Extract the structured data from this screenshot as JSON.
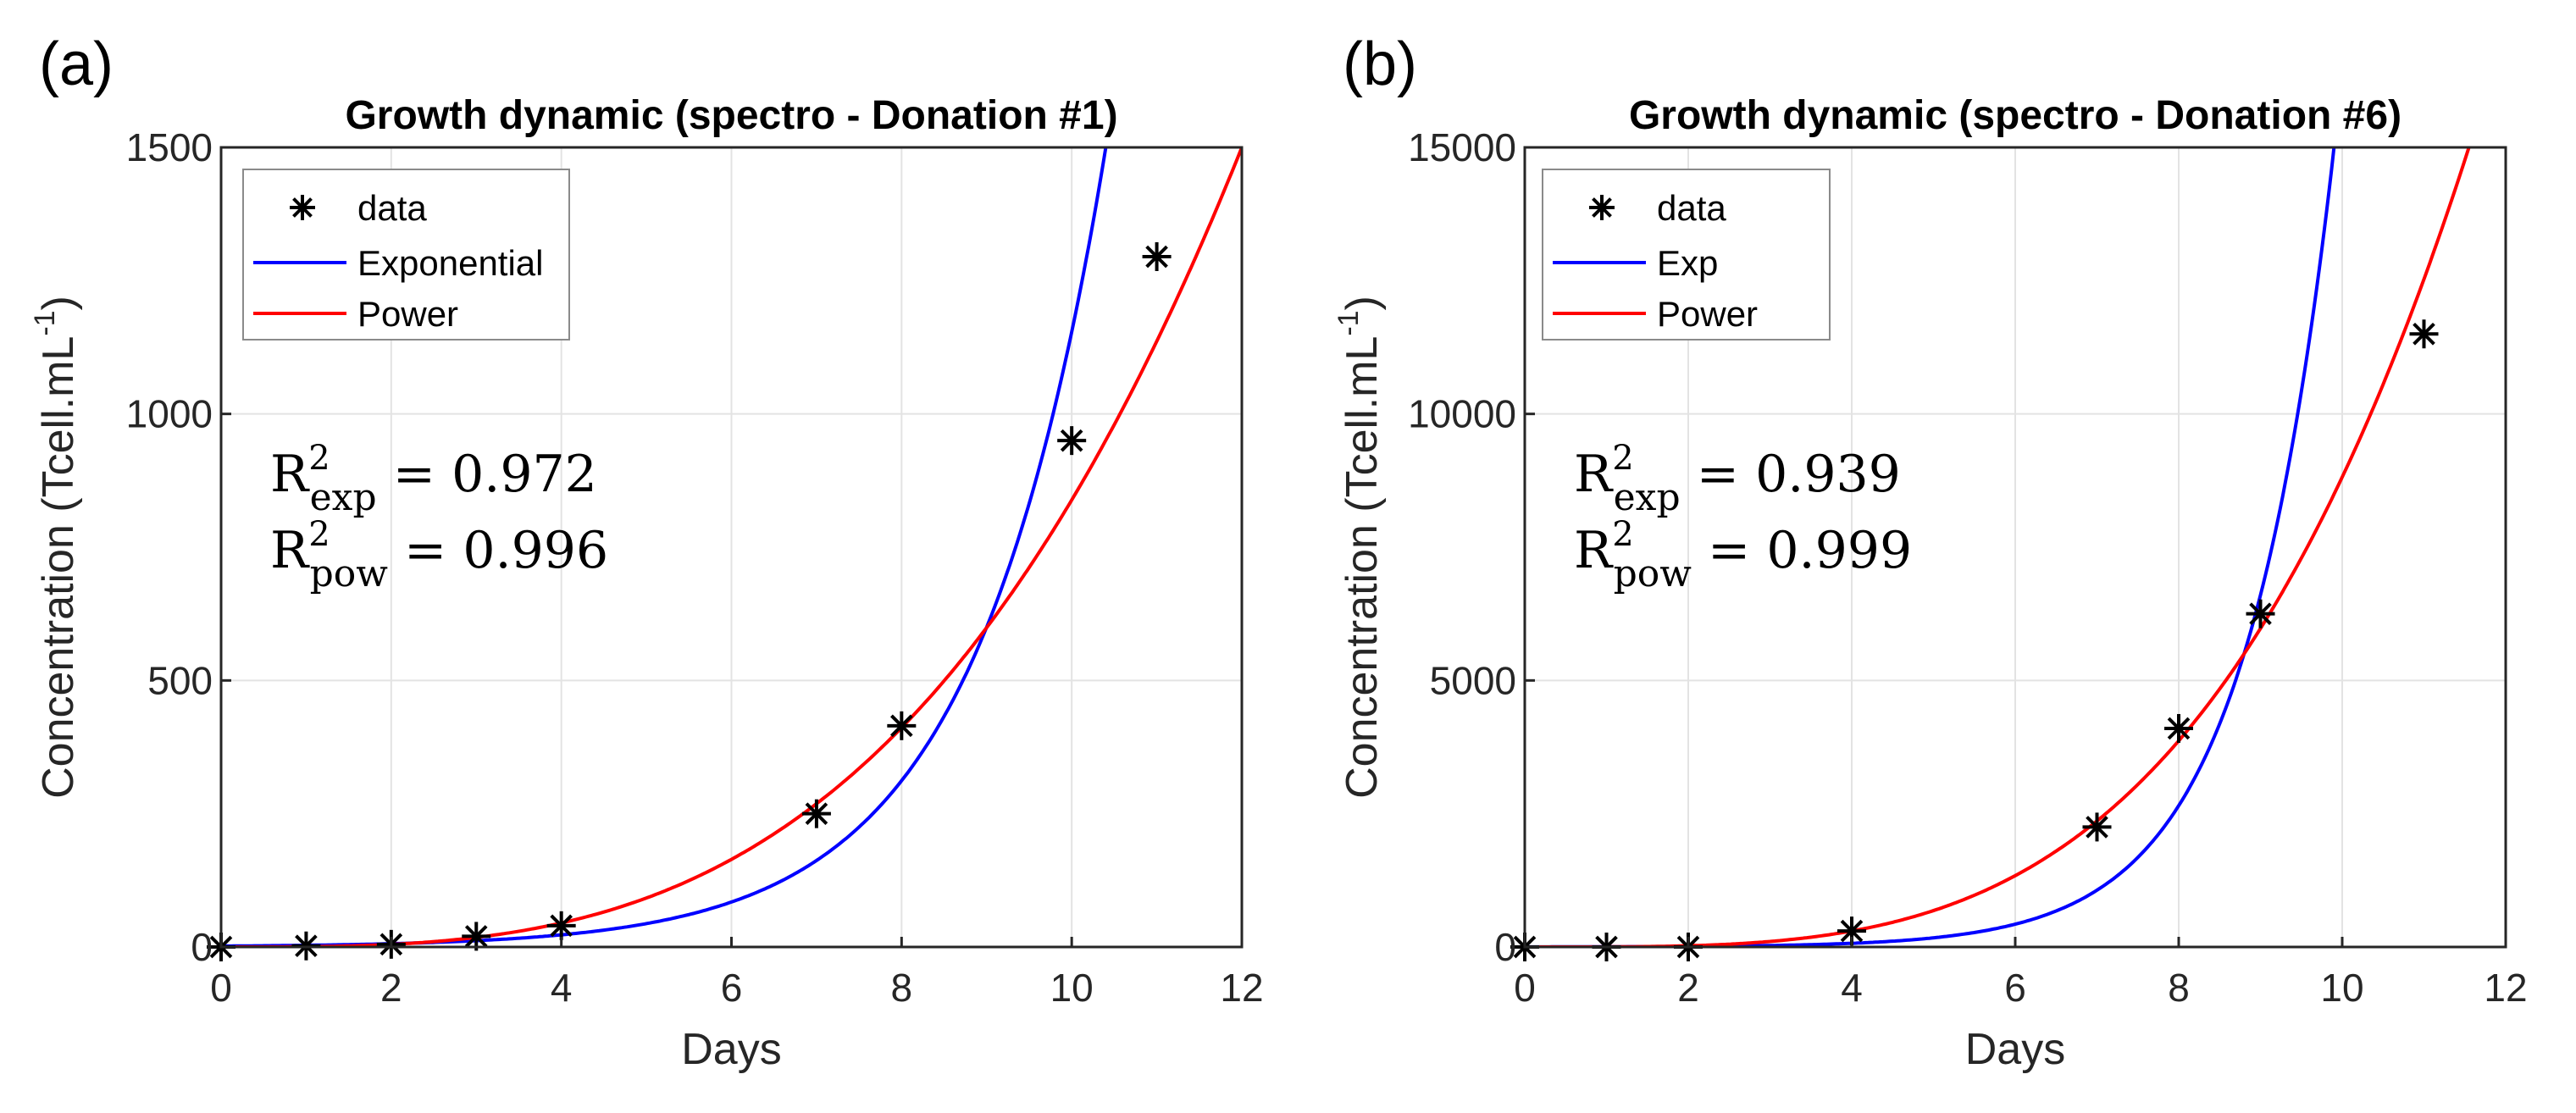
{
  "chart_data": [
    {
      "type": "scatter",
      "panel_label": "(a)",
      "title": "Growth dynamic (spectro - Donation #1)",
      "xlabel": "Days",
      "ylabel": {
        "main": "Concentration (Tcell.mL",
        "sup": "-1",
        "close": ")"
      },
      "xlim": [
        0,
        12
      ],
      "ylim": [
        0,
        1500
      ],
      "xticks": [
        0,
        2,
        4,
        6,
        8,
        10,
        12
      ],
      "yticks": [
        0,
        500,
        1000,
        1500
      ],
      "grid": true,
      "legend_position": "top-left",
      "legend": [
        "data",
        "Exponential",
        "Power"
      ],
      "series": [
        {
          "name": "data",
          "marker": "asterisk",
          "color": "#000000",
          "x": [
            0,
            1,
            2,
            3,
            4,
            7,
            8,
            10,
            11
          ],
          "y": [
            0,
            2,
            5,
            20,
            40,
            250,
            415,
            950,
            1295
          ]
        },
        {
          "name": "Exponential",
          "color": "#0000ff",
          "model": "exp",
          "anchor": [
            9,
            600
          ],
          "k": 0.654
        },
        {
          "name": "Power",
          "color": "#ff0000",
          "model": "power",
          "anchor": [
            12,
            1500
          ],
          "b": 3.19
        }
      ],
      "annotations": [
        {
          "sym": "R",
          "sup": "2",
          "sub": "exp",
          "text": " = 0.972"
        },
        {
          "sym": "R",
          "sup": "2",
          "sub": "pow",
          "text": " = 0.996"
        }
      ]
    },
    {
      "type": "scatter",
      "panel_label": "(b)",
      "title": "Growth dynamic (spectro - Donation #6)",
      "xlabel": "Days",
      "ylabel": {
        "main": "Concentration (Tcell.mL",
        "sup": "-1",
        "close": ")"
      },
      "xlim": [
        0,
        12
      ],
      "ylim": [
        0,
        15000
      ],
      "xticks": [
        0,
        2,
        4,
        6,
        8,
        10,
        12
      ],
      "yticks": [
        0,
        5000,
        10000,
        15000
      ],
      "grid": true,
      "legend_position": "top-left",
      "legend": [
        "data",
        "Exp",
        "Power"
      ],
      "series": [
        {
          "name": "data",
          "marker": "asterisk",
          "color": "#000000",
          "x": [
            0,
            1,
            2,
            4,
            7,
            8,
            9,
            11
          ],
          "y": [
            0,
            0,
            0,
            300,
            2250,
            4100,
            6250,
            11500
          ]
        },
        {
          "name": "Exp",
          "color": "#0000ff",
          "model": "exp",
          "anchor": [
            8.8,
            5500
          ],
          "k": 0.912
        },
        {
          "name": "Power",
          "color": "#ff0000",
          "model": "power",
          "anchor": [
            11.55,
            15000
          ],
          "b": 3.69
        }
      ],
      "annotations": [
        {
          "sym": "R",
          "sup": "2",
          "sub": "exp",
          "text": " = 0.939"
        },
        {
          "sym": "R",
          "sup": "2",
          "sub": "pow",
          "text": " = 0.999"
        }
      ]
    }
  ]
}
